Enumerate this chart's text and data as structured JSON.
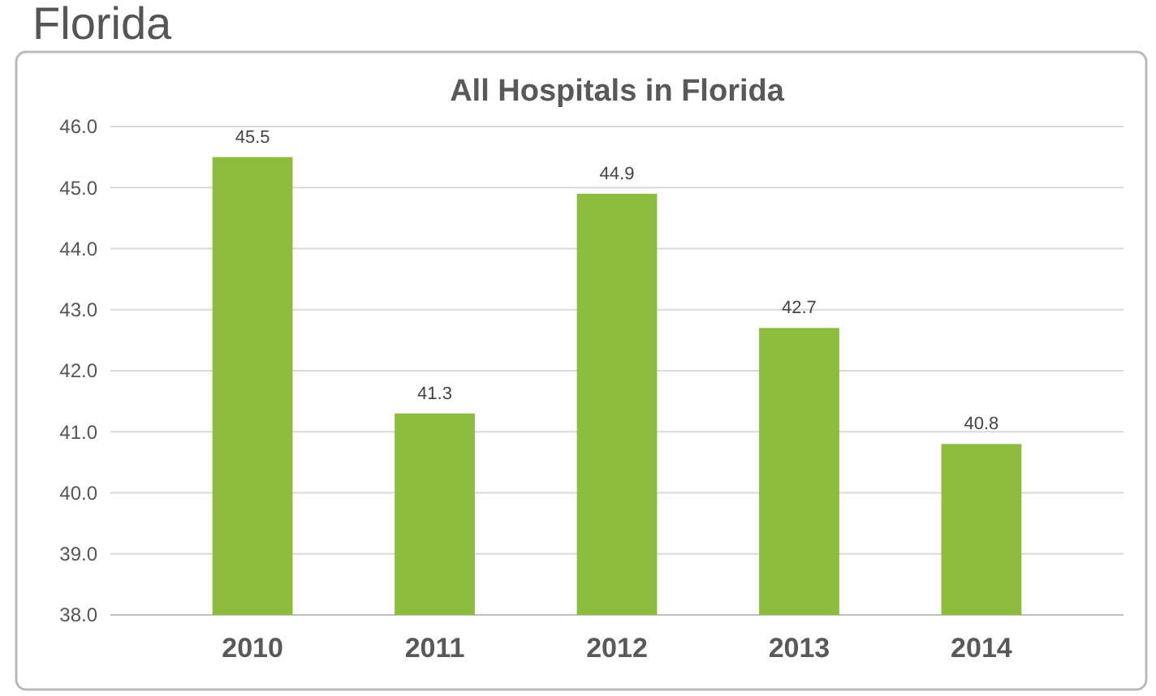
{
  "chart_data": {
    "type": "bar",
    "title": "Florida",
    "subtitle": "All Hospitals in Florida",
    "categories": [
      "2010",
      "2011",
      "2012",
      "2013",
      "2014"
    ],
    "values": [
      45.5,
      41.3,
      44.9,
      42.7,
      40.8
    ],
    "color": "#8dbb3e",
    "data_labels": true,
    "ylim": [
      38,
      46
    ],
    "yticks": [
      {
        "value": 38,
        "label": "38.0"
      },
      {
        "value": 39,
        "label": "39.0"
      },
      {
        "value": 40,
        "label": "40.0"
      },
      {
        "value": 41,
        "label": "41.0"
      },
      {
        "value": 42,
        "label": "42.0"
      },
      {
        "value": 43,
        "label": "43.0"
      },
      {
        "value": 44,
        "label": "44.0"
      },
      {
        "value": 45,
        "label": "45.0"
      },
      {
        "value": 46,
        "label": "46.0"
      }
    ],
    "grid": "y"
  }
}
